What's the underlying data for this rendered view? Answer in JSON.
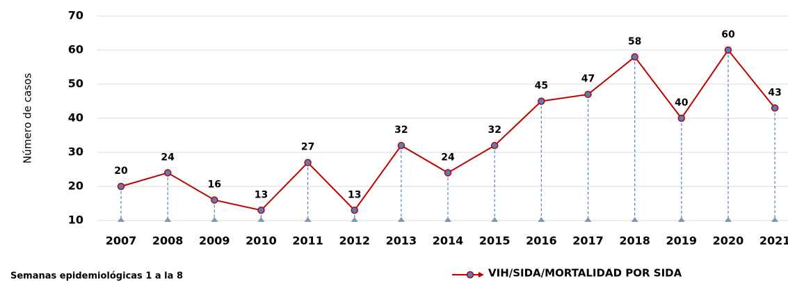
{
  "chart_data": {
    "type": "line",
    "y_axis_label": "Número de casos",
    "footnote": "Semanas epidemiológicas 1 a la 8",
    "categories": [
      "2007",
      "2008",
      "2009",
      "2010",
      "2011",
      "2012",
      "2013",
      "2014",
      "2015",
      "2016",
      "2017",
      "2018",
      "2019",
      "2020",
      "2021"
    ],
    "series": [
      {
        "name": "VIH/SIDA/MORTALIDAD POR SIDA",
        "color": "#c00000",
        "marker_color": "#4f81bd",
        "values": [
          20,
          24,
          16,
          13,
          27,
          13,
          32,
          24,
          32,
          45,
          47,
          58,
          40,
          60,
          43
        ]
      }
    ],
    "ylim": [
      10,
      70
    ],
    "yticks": [
      10,
      20,
      30,
      40,
      50,
      60,
      70
    ],
    "grid": true,
    "legend": "bottom-right"
  }
}
